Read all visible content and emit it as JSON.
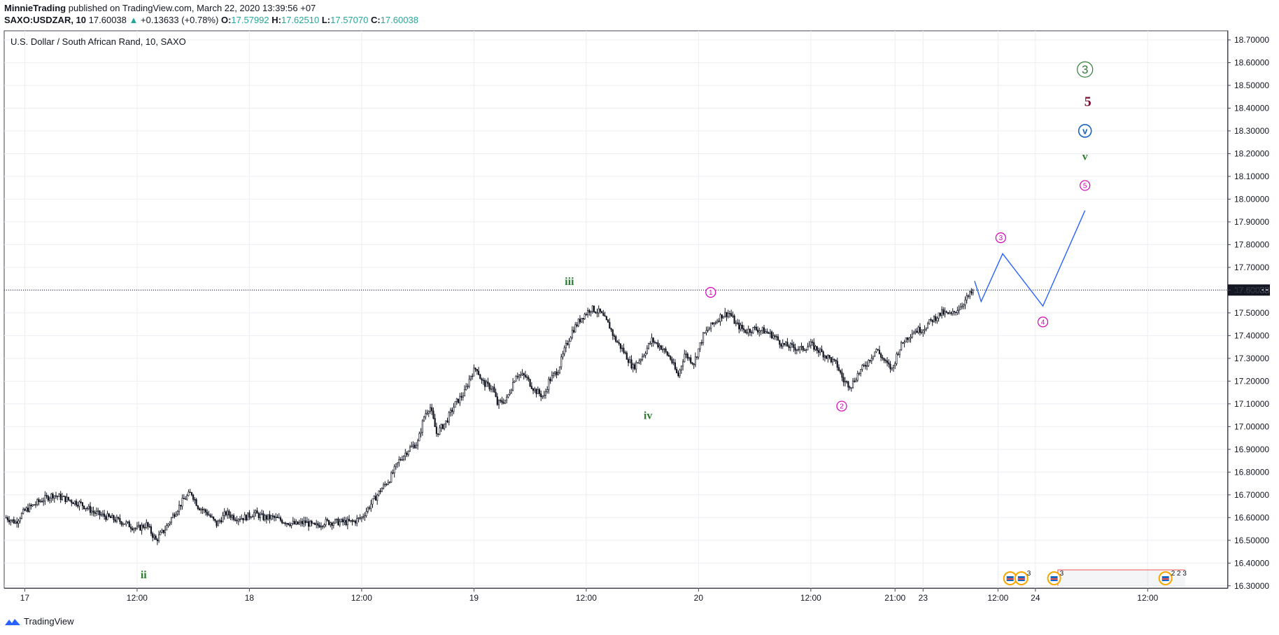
{
  "header": {
    "publisher": "MinnieTrading",
    "published_text": "published on TradingView.com, March 22, 2020 13:39:56 +07"
  },
  "ohlc": {
    "symbol": "SAXO:USDZAR, 10",
    "last": "17.60038",
    "arrow": "▲",
    "change": "+0.13633 (+0.78%)",
    "o_label": "O:",
    "o_value": "17.57992",
    "h_label": "H:",
    "h_value": "17.62510",
    "l_label": "L:",
    "l_value": "17.57070",
    "c_label": "C:",
    "c_value": "17.60038"
  },
  "colors": {
    "candles": "#131722",
    "grid": "#eceef2",
    "projection": "#2962ff",
    "green_wave": "#2e7d32",
    "magenta_wave": "#d500b9",
    "blue_wave": "#1565c0",
    "maroon_wave": "#7b0a2e",
    "price_tag": "#131722",
    "session_box": "#ef5350"
  },
  "footer": {
    "brand": "TradingView",
    "logo_icon": "tradingview-logo-icon"
  },
  "chart_data": {
    "type": "candlestick",
    "title": "U.S. Dollar / South African Rand, 10, SAXO",
    "symbol": "SAXO:USDZAR",
    "interval": "10",
    "x_ticks": [
      "17",
      "12:00",
      "18",
      "12:00",
      "19",
      "12:00",
      "20",
      "12:00",
      "21:00",
      "23",
      "12:00",
      "24",
      "12:00"
    ],
    "x_tick_hours": [
      0,
      12,
      24,
      36,
      48,
      60,
      72,
      84,
      93,
      96,
      104,
      108,
      120
    ],
    "x_range_hours": [
      -2.2,
      128.5
    ],
    "y_ticks": [
      "16.30000",
      "16.40000",
      "16.50000",
      "16.60000",
      "16.70000",
      "16.80000",
      "16.90000",
      "17.00000",
      "17.10000",
      "17.20000",
      "17.30000",
      "17.40000",
      "17.50000",
      "17.60000",
      "17.70000",
      "17.80000",
      "17.90000",
      "18.00000",
      "18.10000",
      "18.20000",
      "18.30000",
      "18.40000",
      "18.50000",
      "18.60000",
      "18.70000"
    ],
    "ylim": [
      16.29,
      18.74
    ],
    "grid": true,
    "current_price": 17.60038,
    "current_price_label": "17.60038",
    "price_path": [
      [
        -2.0,
        16.6
      ],
      [
        -1.0,
        16.58
      ],
      [
        0.0,
        16.63
      ],
      [
        1.5,
        16.67
      ],
      [
        3.0,
        16.7
      ],
      [
        4.5,
        16.68
      ],
      [
        6.0,
        16.66
      ],
      [
        7.5,
        16.62
      ],
      [
        9.0,
        16.6
      ],
      [
        10.5,
        16.58
      ],
      [
        12.0,
        16.55
      ],
      [
        13.0,
        16.57
      ],
      [
        14.0,
        16.5
      ],
      [
        15.0,
        16.55
      ],
      [
        16.0,
        16.62
      ],
      [
        17.0,
        16.68
      ],
      [
        17.8,
        16.71
      ],
      [
        18.5,
        16.65
      ],
      [
        19.5,
        16.62
      ],
      [
        20.5,
        16.57
      ],
      [
        21.5,
        16.62
      ],
      [
        22.5,
        16.6
      ],
      [
        23.5,
        16.6
      ],
      [
        24.5,
        16.62
      ],
      [
        25.5,
        16.6
      ],
      [
        26.5,
        16.6
      ],
      [
        28.0,
        16.58
      ],
      [
        29.0,
        16.57
      ],
      [
        30.0,
        16.58
      ],
      [
        31.0,
        16.56
      ],
      [
        32.0,
        16.58
      ],
      [
        33.5,
        16.58
      ],
      [
        35.0,
        16.58
      ],
      [
        36.0,
        16.6
      ],
      [
        37.0,
        16.66
      ],
      [
        38.0,
        16.72
      ],
      [
        39.0,
        16.77
      ],
      [
        40.0,
        16.85
      ],
      [
        41.0,
        16.9
      ],
      [
        42.0,
        16.93
      ],
      [
        42.7,
        17.05
      ],
      [
        43.3,
        17.09
      ],
      [
        44.0,
        16.97
      ],
      [
        45.0,
        17.02
      ],
      [
        46.0,
        17.1
      ],
      [
        47.0,
        17.15
      ],
      [
        47.7,
        17.23
      ],
      [
        48.3,
        17.26
      ],
      [
        48.8,
        17.2
      ],
      [
        49.4,
        17.18
      ],
      [
        50.0,
        17.17
      ],
      [
        50.5,
        17.1
      ],
      [
        51.5,
        17.12
      ],
      [
        52.5,
        17.23
      ],
      [
        53.5,
        17.22
      ],
      [
        54.5,
        17.16
      ],
      [
        55.5,
        17.13
      ],
      [
        56.0,
        17.2
      ],
      [
        57.0,
        17.25
      ],
      [
        57.8,
        17.35
      ],
      [
        58.5,
        17.42
      ],
      [
        59.5,
        17.48
      ],
      [
        60.5,
        17.52
      ],
      [
        61.5,
        17.5
      ],
      [
        62.5,
        17.44
      ],
      [
        63.0,
        17.39
      ],
      [
        64.0,
        17.33
      ],
      [
        65.0,
        17.26
      ],
      [
        66.0,
        17.31
      ],
      [
        67.0,
        17.38
      ],
      [
        68.0,
        17.35
      ],
      [
        69.0,
        17.3
      ],
      [
        69.8,
        17.22
      ],
      [
        70.5,
        17.32
      ],
      [
        71.5,
        17.28
      ],
      [
        72.5,
        17.4
      ],
      [
        73.5,
        17.45
      ],
      [
        74.5,
        17.49
      ],
      [
        75.3,
        17.5
      ],
      [
        76.0,
        17.45
      ],
      [
        77.0,
        17.42
      ],
      [
        78.0,
        17.43
      ],
      [
        79.0,
        17.42
      ],
      [
        80.0,
        17.4
      ],
      [
        81.0,
        17.36
      ],
      [
        82.0,
        17.35
      ],
      [
        83.0,
        17.34
      ],
      [
        84.0,
        17.36
      ],
      [
        85.0,
        17.33
      ],
      [
        86.0,
        17.3
      ],
      [
        86.8,
        17.27
      ],
      [
        87.5,
        17.2
      ],
      [
        88.3,
        17.18
      ],
      [
        89.0,
        17.23
      ],
      [
        90.0,
        17.28
      ],
      [
        91.0,
        17.34
      ],
      [
        92.0,
        17.28
      ],
      [
        92.7,
        17.25
      ],
      [
        93.3,
        17.33
      ],
      [
        94.0,
        17.38
      ],
      [
        95.0,
        17.42
      ],
      [
        96.0,
        17.43
      ],
      [
        97.0,
        17.47
      ],
      [
        98.0,
        17.5
      ],
      [
        99.0,
        17.49
      ],
      [
        100.0,
        17.53
      ],
      [
        101.0,
        17.58
      ],
      [
        101.5,
        17.6
      ]
    ],
    "projection": [
      [
        101.5,
        17.64
      ],
      [
        102.2,
        17.55
      ],
      [
        104.5,
        17.76
      ],
      [
        108.8,
        17.53
      ],
      [
        113.3,
        17.95
      ]
    ],
    "annotations": [
      {
        "label": "ii",
        "x": 12.7,
        "y": 16.35,
        "color": "green",
        "style": "text"
      },
      {
        "label": "iii",
        "x": 58.2,
        "y": 17.64,
        "color": "green",
        "style": "text"
      },
      {
        "label": "iv",
        "x": 66.6,
        "y": 17.05,
        "color": "green",
        "style": "text"
      },
      {
        "label": "1",
        "x": 73.3,
        "y": 17.59,
        "color": "magenta",
        "style": "circle"
      },
      {
        "label": "2",
        "x": 87.3,
        "y": 17.09,
        "color": "magenta",
        "style": "circle"
      },
      {
        "label": "3",
        "x": 104.3,
        "y": 17.83,
        "color": "magenta",
        "style": "circle"
      },
      {
        "label": "4",
        "x": 108.8,
        "y": 17.46,
        "color": "magenta",
        "style": "circle"
      },
      {
        "label": "5",
        "x": 113.3,
        "y": 18.06,
        "color": "magenta",
        "style": "circle"
      },
      {
        "label": "v",
        "x": 113.3,
        "y": 18.19,
        "color": "green",
        "style": "text"
      },
      {
        "label": "v",
        "x": 113.3,
        "y": 18.3,
        "color": "blue",
        "style": "circle-bold"
      },
      {
        "label": "5",
        "x": 113.6,
        "y": 18.43,
        "color": "maroon",
        "style": "text-big"
      },
      {
        "label": "3",
        "x": 113.3,
        "y": 18.57,
        "color": "green",
        "style": "circle-big"
      }
    ],
    "events": [
      {
        "x": 105.3,
        "label": ""
      },
      {
        "x": 106.5,
        "label": "3"
      },
      {
        "x": 110.0,
        "label": "3"
      },
      {
        "x": 121.9,
        "label": "2 2 3"
      }
    ],
    "session_box": {
      "x_start": 110.4,
      "x_end": 124.0,
      "y_low": 16.3,
      "y_high": 16.37
    }
  }
}
